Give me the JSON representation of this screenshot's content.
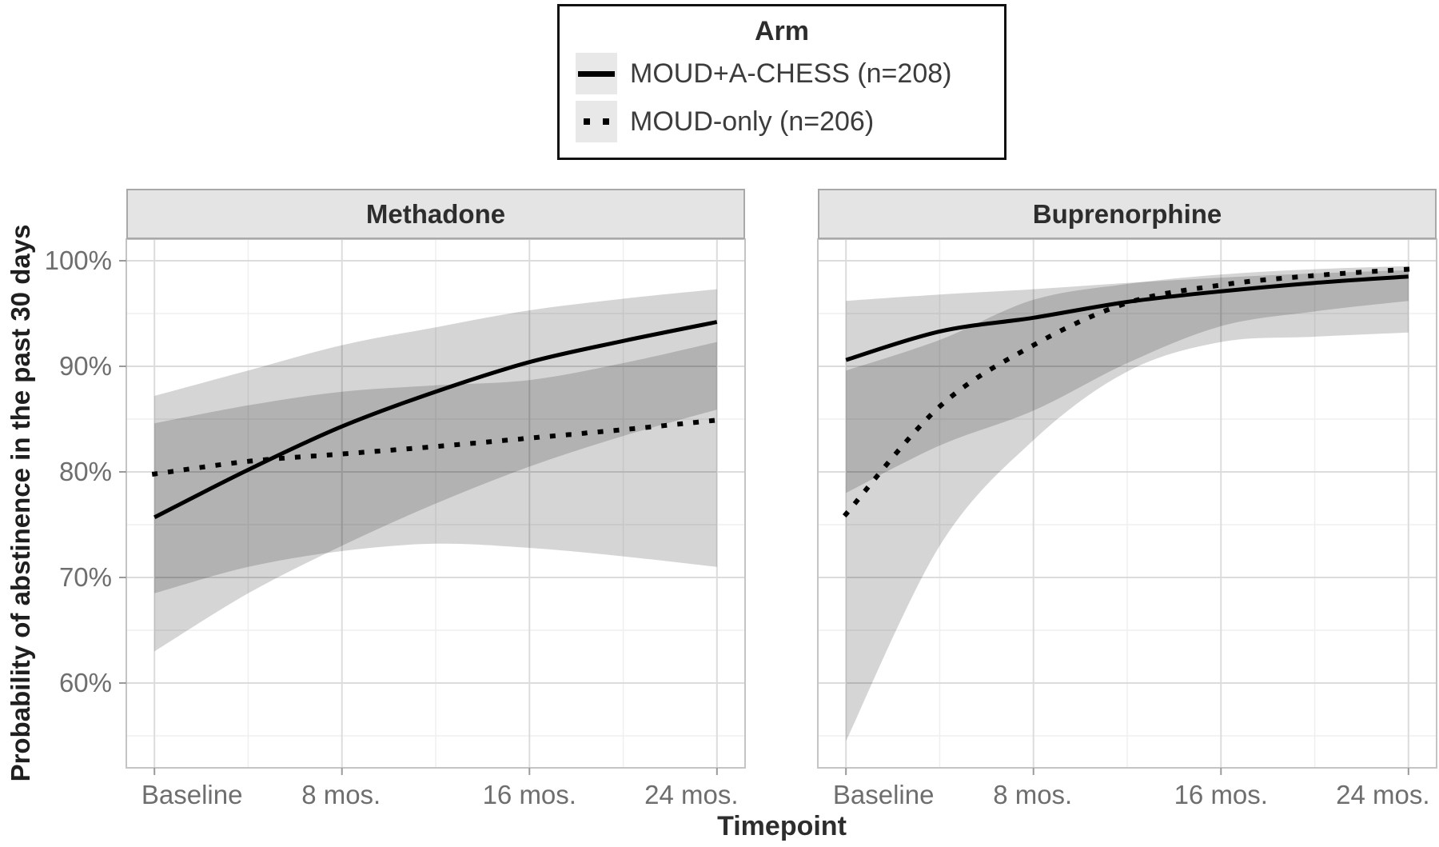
{
  "figure": {
    "legend": {
      "title": "Arm",
      "entries": [
        {
          "label": "MOUD+A-CHESS (n=208)",
          "linetype": "solid"
        },
        {
          "label": "MOUD-only (n=206)",
          "linetype": "dotted"
        }
      ]
    },
    "y_axis": {
      "title": "Probability of abstinence in the past 30 days"
    },
    "x_axis": {
      "title": "Timepoint"
    }
  },
  "chart_data": {
    "type": "line",
    "legend_title": "Arm",
    "facet_variable_values": [
      "Methadone",
      "Buprenorphine"
    ],
    "x": {
      "unit": "months",
      "breaks": [
        0,
        8,
        16,
        24
      ],
      "minor_breaks": [
        4,
        12,
        20
      ],
      "tick_labels": [
        "Baseline",
        "8 mos.",
        "16 mos.",
        "24 mos."
      ],
      "range": [
        0,
        24
      ]
    },
    "y": {
      "label": "Probability of abstinence in the past 30 days",
      "breaks": [
        100,
        90,
        80,
        70,
        60
      ],
      "tick_labels": [
        "100%",
        "90%",
        "80%",
        "70%",
        "60%"
      ],
      "minor_breaks": [
        95,
        85,
        75,
        65,
        55
      ],
      "ylim": [
        52,
        102
      ],
      "unit": "percent"
    },
    "months_sampled": [
      0,
      4,
      8,
      12,
      16,
      20,
      24
    ],
    "facets": [
      {
        "name": "Methadone",
        "series": [
          {
            "name": "MOUD+A-CHESS (n=208)",
            "linetype": "solid",
            "values": [
              75.7,
              80.2,
              84.3,
              87.6,
              90.4,
              92.4,
              94.2
            ],
            "ci_upper": [
              87.2,
              89.6,
              92.0,
              93.7,
              95.3,
              96.4,
              97.3
            ],
            "ci_lower": [
              63.0,
              68.5,
              73.0,
              77.0,
              80.5,
              83.4,
              85.9
            ]
          },
          {
            "name": "MOUD-only (n=206)",
            "linetype": "dotted",
            "values": [
              79.8,
              81.0,
              81.7,
              82.4,
              83.2,
              84.0,
              84.9
            ],
            "ci_upper": [
              84.6,
              86.3,
              87.6,
              88.2,
              88.7,
              90.3,
              92.3
            ],
            "ci_lower": [
              68.5,
              71.0,
              72.5,
              73.2,
              72.8,
              72.0,
              71.0
            ]
          }
        ]
      },
      {
        "name": "Buprenorphine",
        "series": [
          {
            "name": "MOUD+A-CHESS (n=208)",
            "linetype": "solid",
            "values": [
              90.6,
              93.3,
              94.6,
              96.1,
              97.1,
              97.9,
              98.5
            ],
            "ci_upper": [
              96.2,
              96.8,
              97.3,
              97.9,
              98.4,
              98.8,
              99.1
            ],
            "ci_lower": [
              78.0,
              82.5,
              85.8,
              90.3,
              93.8,
              95.2,
              96.2
            ]
          },
          {
            "name": "MOUD-only (n=206)",
            "linetype": "dotted",
            "values": [
              76.0,
              86.2,
              92.0,
              96.0,
              97.7,
              98.6,
              99.2
            ],
            "ci_upper": [
              89.6,
              92.5,
              96.3,
              97.8,
              98.7,
              99.2,
              99.5
            ],
            "ci_lower": [
              54.5,
              73.0,
              83.0,
              89.5,
              92.3,
              92.8,
              93.2
            ]
          }
        ]
      }
    ],
    "styles": {
      "ribbon_fill": "rgba(0,0,0,0.165)",
      "line_color": "#000000",
      "grid_major": "#dcdcdc",
      "grid_minor": "#efefef",
      "panel_border": "#c4c4c4",
      "tick_mark": "#9a9a9a",
      "strip_fill": "#e4e4e4",
      "strip_border": "#a8a8a8",
      "axis_text": "#6e6e6e",
      "title_text": "#2d2d2d"
    }
  }
}
